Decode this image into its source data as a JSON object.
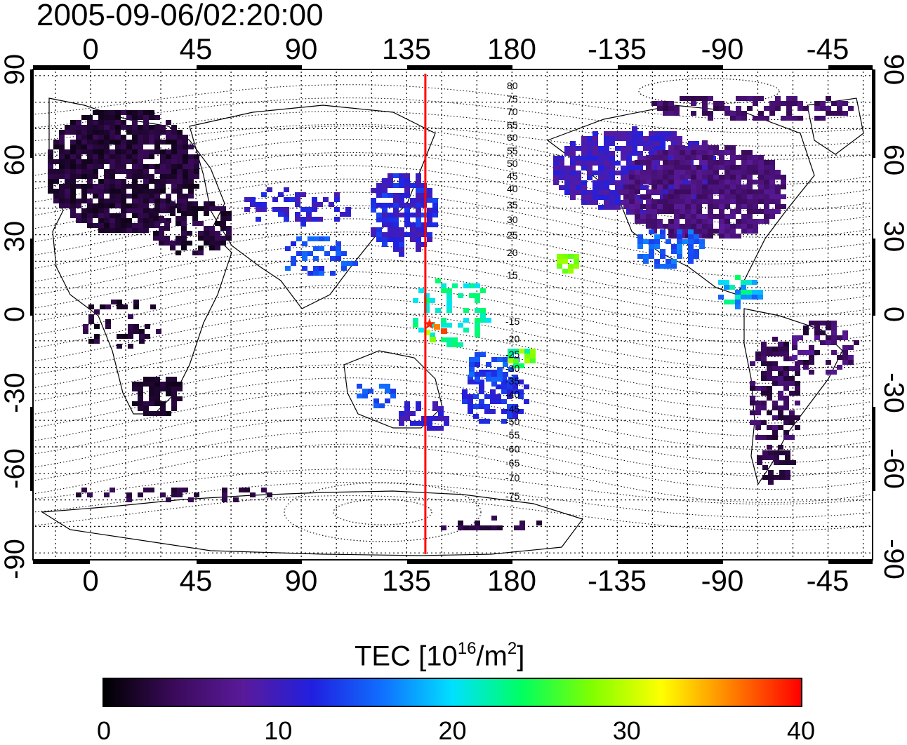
{
  "timestamp": "2005-09-06/02:20:00",
  "map": {
    "top_lon_labels": [
      "0",
      "45",
      "90",
      "135",
      "180",
      "-135",
      "-90",
      "-45"
    ],
    "bottom_lon_labels": [
      "0",
      "45",
      "90",
      "135",
      "180",
      "-135",
      "-90",
      "-45"
    ],
    "lat_labels": [
      "90",
      "60",
      "30",
      "0",
      "-30",
      "-60",
      "-90"
    ],
    "contour_labels_north": [
      "80",
      "75",
      "70",
      "65",
      "60",
      "55",
      "50",
      "45",
      "40",
      "35",
      "30",
      "25",
      "20",
      "15"
    ],
    "contour_labels_south": [
      "-15",
      "-20",
      "-25",
      "-30",
      "-35",
      "-40",
      "-45",
      "-50",
      "-55",
      "-60",
      "-65",
      "-70",
      "-75"
    ],
    "meridian_line_color": "#ff0000",
    "meridian_lon": 143
  },
  "colorbar": {
    "title_prefix": "TEC  [10",
    "title_sup1": "16",
    "title_mid": "/m",
    "title_sup2": "2",
    "title_suffix": "]",
    "ticks": [
      "0",
      "10",
      "20",
      "30",
      "40"
    ],
    "min": 0,
    "max": 40,
    "colors": [
      "#000000",
      "#3a0a5a",
      "#5a1a9a",
      "#2020e0",
      "#1070ff",
      "#00e0ff",
      "#00ff60",
      "#80ff00",
      "#ffff00",
      "#ff8000",
      "#ff0000"
    ]
  }
}
